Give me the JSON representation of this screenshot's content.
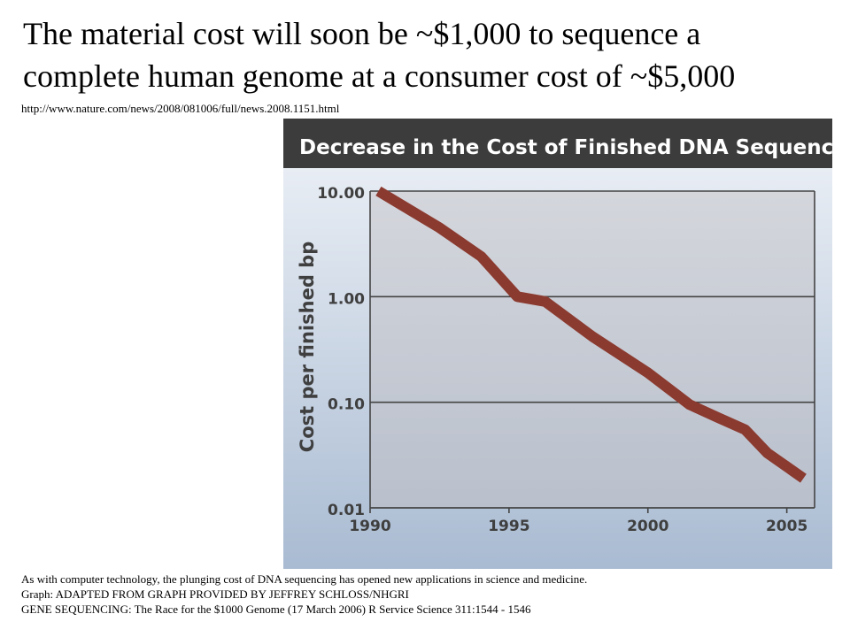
{
  "slide": {
    "title_line1": "The material cost will soon be ~$1,000 to sequence a",
    "title_line2": "complete human genome at a consumer cost of ~$5,000",
    "source_url": "http://www.nature.com/news/2008/081006/full/news.2008.1151.html"
  },
  "caption": {
    "line1": "As with computer technology, the plunging cost of DNA sequencing has opened new applications in science and medicine.",
    "line2": "Graph: ADAPTED FROM GRAPH PROVIDED BY JEFFREY SCHLOSS/NHGRI",
    "line3": "GENE SEQUENCING: The Race for the $1000 Genome (17 March 2006) R Service Science 311:1544 - 1546"
  },
  "colors": {
    "header_bg": "#3c3c3c",
    "header_text": "#ffffff",
    "panel_bg_top": "#e8edf4",
    "panel_bg_bottom": "#a9bbd2",
    "plot_bg_top": "#d4d6dc",
    "plot_bg_bottom": "#b9c0cc",
    "line": "#8b3a2f",
    "axis_text": "#3f3f3f"
  },
  "chart_data": {
    "type": "line",
    "title": "Decrease in the Cost of Finished DNA Sequencing",
    "xlabel": "",
    "ylabel": "Cost per finished bp",
    "y_scale": "log",
    "xlim": [
      1990,
      2006
    ],
    "ylim": [
      0.01,
      10
    ],
    "x_ticks": [
      1990,
      1995,
      2000,
      2005
    ],
    "x_tick_labels": [
      "1990",
      "1995",
      "2000",
      "2005"
    ],
    "y_ticks": [
      0.01,
      0.1,
      1,
      10
    ],
    "y_tick_labels": [
      "0.01",
      "0.10",
      "1.00",
      "10.00"
    ],
    "grid": "horizontal",
    "series": [
      {
        "x": [
          1990.3,
          1992.5,
          1994.0,
          1995.3,
          1996.3,
          1998.0,
          2000.0,
          2001.5,
          2002.5,
          2003.5,
          2004.3,
          2005.6
        ],
        "y": [
          10.0,
          4.5,
          2.4,
          1.0,
          0.9,
          0.42,
          0.19,
          0.095,
          0.072,
          0.055,
          0.033,
          0.019
        ]
      }
    ]
  }
}
